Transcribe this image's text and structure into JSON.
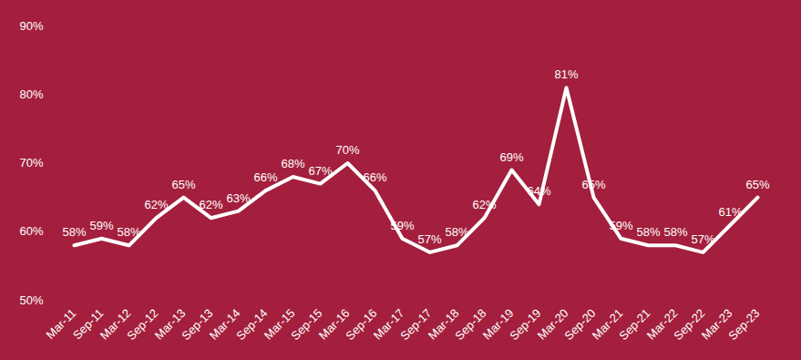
{
  "chart_data": {
    "type": "line",
    "categories": [
      "Mar-11",
      "Sep-11",
      "Mar-12",
      "Sep-12",
      "Mar-13",
      "Sep-13",
      "Mar-14",
      "Sep-14",
      "Mar-15",
      "Sep-15",
      "Mar-16",
      "Sep-16",
      "Mar-17",
      "Sep-17",
      "Mar-18",
      "Sep-18",
      "Mar-19",
      "Sep-19",
      "Mar-20",
      "Sep-20",
      "Mar-21",
      "Sep-21",
      "Mar-22",
      "Sep-22",
      "Mar-23",
      "Sep-23"
    ],
    "values": [
      58,
      59,
      58,
      62,
      65,
      62,
      63,
      66,
      68,
      67,
      70,
      66,
      59,
      57,
      58,
      62,
      69,
      64,
      81,
      65,
      59,
      58,
      58,
      57,
      61,
      65
    ],
    "value_labels": [
      "58%",
      "59%",
      "58%",
      "62%",
      "65%",
      "62%",
      "63%",
      "66%",
      "68%",
      "67%",
      "70%",
      "66%",
      "59%",
      "57%",
      "58%",
      "62%",
      "69%",
      "64%",
      "81%",
      "65%",
      "59%",
      "58%",
      "58%",
      "57%",
      "61%",
      "65%"
    ],
    "color": "#ffffff",
    "data_labels": true,
    "grid": false,
    "ylim": [
      50,
      90
    ],
    "yticks": [
      {
        "value": 50,
        "label": "50%"
      },
      {
        "value": 60,
        "label": "60%"
      },
      {
        "value": 70,
        "label": "70%"
      },
      {
        "value": 80,
        "label": "80%"
      },
      {
        "value": 90,
        "label": "90%"
      }
    ]
  }
}
